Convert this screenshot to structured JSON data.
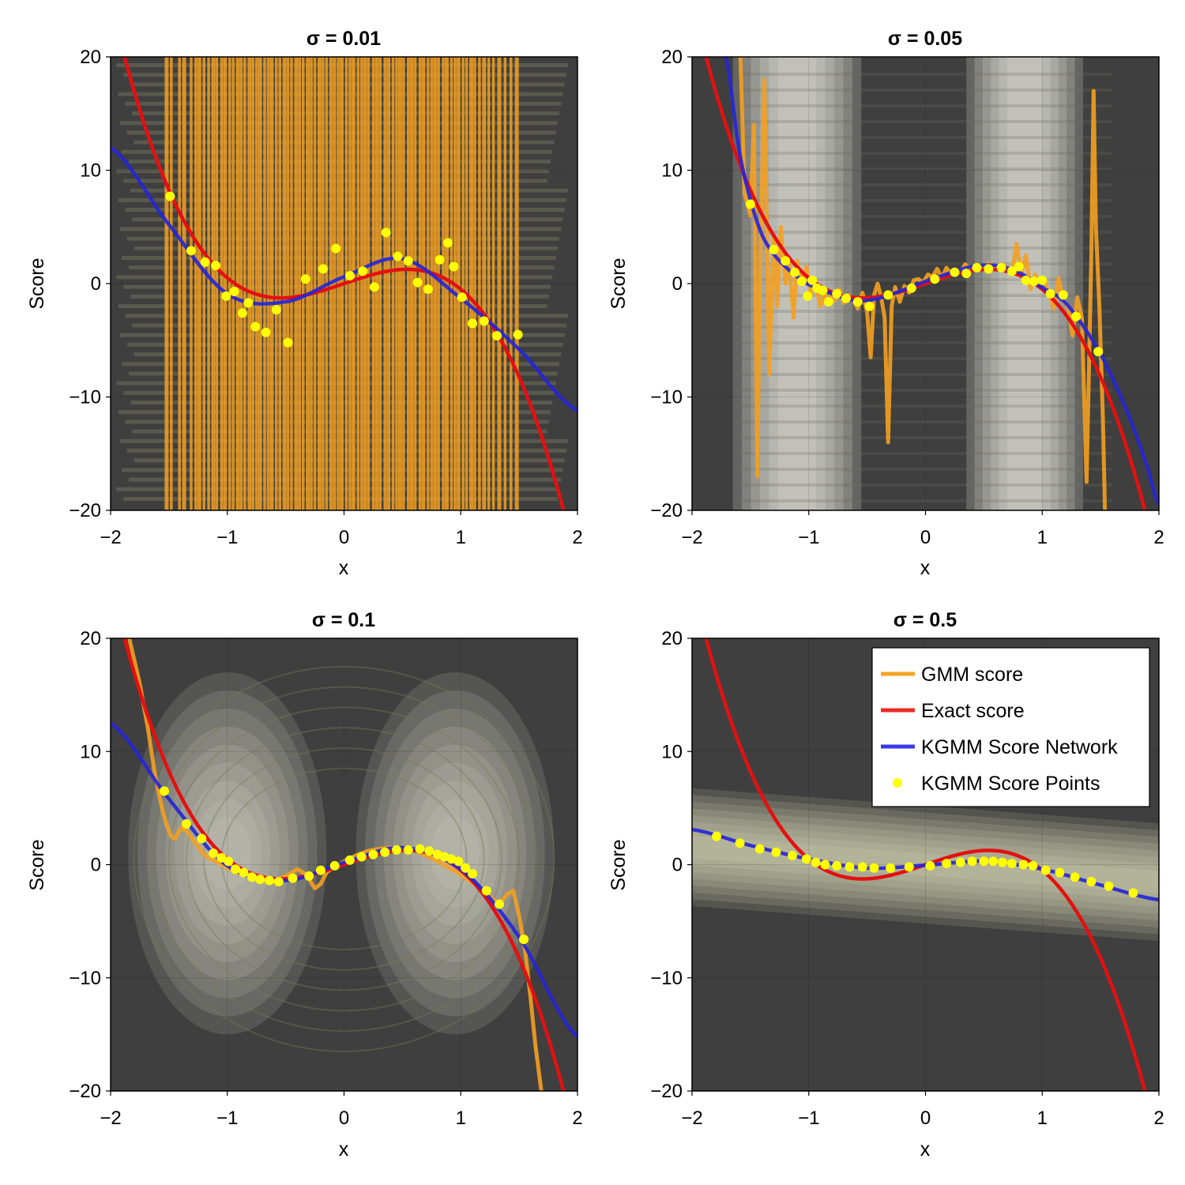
{
  "chart_data": [
    {
      "type": "line",
      "title": "σ = 0.01",
      "sigma": 0.01,
      "xlabel": "x",
      "ylabel": "Score",
      "xlim": [
        -2,
        2
      ],
      "ylim": [
        -20,
        20
      ],
      "xticks": [
        -2,
        -1,
        0,
        1,
        2
      ],
      "yticks": [
        -20,
        -10,
        0,
        10,
        20
      ],
      "xtick_labels": [
        "−2",
        "−1",
        "0",
        "1",
        "2"
      ],
      "ytick_labels": [
        "−20",
        "−10",
        "0",
        "10",
        "20"
      ],
      "grid": true,
      "series": [
        {
          "name": "GMM score",
          "style": "vertical-lines",
          "x": [
            -1.52,
            -1.48,
            -1.41,
            -1.37,
            -1.31,
            -1.27,
            -1.24,
            -1.2,
            -1.16,
            -1.12,
            -1.09,
            -1.05,
            -1.02,
            -0.98,
            -0.95,
            -0.91,
            -0.88,
            -0.85,
            -0.81,
            -0.78,
            -0.75,
            -0.72,
            -0.68,
            -0.65,
            -0.62,
            -0.58,
            -0.55,
            -0.51,
            -0.48,
            -0.45,
            -0.41,
            -0.38,
            -0.35,
            -0.31,
            -0.28,
            -0.25,
            -0.21,
            -0.18,
            -0.15,
            -0.11,
            -0.08,
            -0.05,
            -0.02,
            0.02,
            0.05,
            0.08,
            0.12,
            0.15,
            0.18,
            0.21,
            0.25,
            0.28,
            0.31,
            0.35,
            0.38,
            0.42,
            0.45,
            0.48,
            0.51,
            0.55,
            0.58,
            0.61,
            0.65,
            0.68,
            0.72,
            0.75,
            0.78,
            0.81,
            0.85,
            0.88,
            0.92,
            0.95,
            0.98,
            1.02,
            1.05,
            1.09,
            1.12,
            1.16,
            1.2,
            1.24,
            1.28,
            1.33,
            1.38,
            1.43,
            1.48
          ]
        },
        {
          "name": "Exact score",
          "fn": "exact"
        },
        {
          "name": "KGMM Score Network",
          "fn": "network",
          "x": [
            -2,
            -1.5,
            -1.0,
            -0.5,
            0,
            0.5,
            1.0,
            1.5,
            2.0
          ],
          "y": [
            12,
            5.2,
            -0.9,
            -1.6,
            0.6,
            2.2,
            -1.3,
            -5.8,
            -11.2
          ]
        },
        {
          "name": "KGMM Score Points",
          "fn": "points",
          "x": [
            -1.49,
            -1.31,
            -1.19,
            -1.1,
            -1.01,
            -0.94,
            -0.87,
            -0.82,
            -0.76,
            -0.67,
            -0.58,
            -0.48,
            -0.33,
            -0.18,
            -0.07,
            0.05,
            0.16,
            0.26,
            0.36,
            0.46,
            0.55,
            0.63,
            0.72,
            0.82,
            0.89,
            0.94,
            1.01,
            1.1,
            1.2,
            1.31,
            1.49
          ],
          "y": [
            7.7,
            2.9,
            1.9,
            1.6,
            -1.1,
            -0.7,
            -2.6,
            -1.7,
            -3.8,
            -4.3,
            -2.3,
            -5.2,
            0.4,
            1.3,
            3.1,
            0.7,
            1.1,
            -0.3,
            4.5,
            2.4,
            2.0,
            0.1,
            -0.5,
            2.1,
            3.6,
            1.5,
            -1.2,
            -3.5,
            -3.3,
            -4.6,
            -4.5
          ]
        }
      ],
      "legend": null
    },
    {
      "type": "line",
      "title": "σ = 0.05",
      "sigma": 0.05,
      "xlabel": "x",
      "ylabel": "Score",
      "xlim": [
        -2,
        2
      ],
      "ylim": [
        -20,
        20
      ],
      "xticks": [
        -2,
        -1,
        0,
        1,
        2
      ],
      "yticks": [
        -20,
        -10,
        0,
        10,
        20
      ],
      "xtick_labels": [
        "−2",
        "−1",
        "0",
        "1",
        "2"
      ],
      "ytick_labels": [
        "−20",
        "−10",
        "0",
        "10",
        "20"
      ],
      "grid": true,
      "series": [
        {
          "name": "GMM score",
          "fn": "gmm",
          "x": [
            -1.6,
            -1.55,
            -1.5,
            -1.47,
            -1.44,
            -1.42,
            -1.38,
            -1.34,
            -1.3,
            -1.27,
            -1.24,
            -1.2,
            -1.17,
            -1.13,
            -1.1,
            -1.06,
            -1.02,
            -0.98,
            -0.94,
            -0.9,
            -0.86,
            -0.82,
            -0.78,
            -0.74,
            -0.7,
            -0.66,
            -0.62,
            -0.58,
            -0.54,
            -0.5,
            -0.47,
            -0.44,
            -0.41,
            -0.38,
            -0.35,
            -0.32,
            -0.29,
            -0.26,
            -0.22,
            -0.18,
            -0.14,
            -0.1,
            -0.06,
            -0.02,
            0.02,
            0.06,
            0.1,
            0.14,
            0.18,
            0.22,
            0.26,
            0.3,
            0.34,
            0.38,
            0.42,
            0.46,
            0.5,
            0.54,
            0.58,
            0.62,
            0.66,
            0.7,
            0.74,
            0.78,
            0.82,
            0.86,
            0.9,
            0.94,
            0.98,
            1.02,
            1.06,
            1.1,
            1.14,
            1.18,
            1.22,
            1.26,
            1.3,
            1.34,
            1.38,
            1.42,
            1.44,
            1.46,
            1.49,
            1.52,
            1.54
          ],
          "y": [
            25,
            8,
            6,
            14,
            -17,
            0,
            18,
            -8,
            4,
            -2,
            5,
            0,
            2,
            -3,
            2,
            0,
            1.5,
            -1,
            0,
            -2,
            -0.8,
            -1.2,
            -1.5,
            -0.5,
            -1.7,
            -1,
            -1.4,
            -2.2,
            -0.8,
            -2.5,
            -6.5,
            -1,
            0,
            -1.2,
            -3,
            -14,
            -2,
            -0.3,
            -1.6,
            -0.2,
            -0.8,
            0.3,
            0.4,
            0.1,
            0.8,
            0.6,
            1.3,
            0.5,
            1.4,
            0.8,
            1.2,
            1.0,
            1.7,
            1.3,
            1.4,
            1.5,
            1.4,
            1.8,
            1.6,
            1.3,
            1.7,
            1.4,
            0.8,
            3.5,
            0.8,
            2.5,
            -0.5,
            0.8,
            -0.2,
            0.2,
            -1,
            -2.2,
            0.5,
            -1.5,
            -2,
            -4.6,
            -1.2,
            -3,
            -17.5,
            2,
            17,
            5,
            -2,
            -12,
            -21
          ]
        },
        {
          "name": "Exact score",
          "fn": "exact"
        },
        {
          "name": "KGMM Score Network",
          "fn": "network",
          "x": [
            -1.71,
            -1.6,
            -1.5,
            -1.4,
            -1.3,
            -1.2,
            -1.1,
            -1.0,
            -0.8,
            -0.6,
            -0.4,
            -0.2,
            0,
            0.2,
            0.4,
            0.6,
            0.8,
            1.0,
            1.1,
            1.2,
            1.3,
            1.4,
            1.5,
            1.6,
            1.7,
            1.8,
            1.9,
            2.0
          ],
          "y": [
            20,
            12,
            7.4,
            4.3,
            2.6,
            1.5,
            0.6,
            -0.1,
            -0.9,
            -1.5,
            -1.3,
            -0.6,
            0.2,
            0.9,
            1.5,
            1.6,
            1.0,
            -0.3,
            -0.9,
            -1.7,
            -3.0,
            -4.5,
            -6.2,
            -8.3,
            -10.6,
            -13.2,
            -16.2,
            -19.5
          ]
        },
        {
          "name": "KGMM Score Points",
          "fn": "points",
          "x": [
            -1.5,
            -1.3,
            -1.2,
            -1.12,
            -1.06,
            -1.01,
            -0.97,
            -0.93,
            -0.88,
            -0.83,
            -0.76,
            -0.68,
            -0.58,
            -0.48,
            -0.32,
            -0.12,
            0.08,
            0.25,
            0.35,
            0.44,
            0.54,
            0.65,
            0.74,
            0.8,
            0.86,
            0.93,
            1.0,
            1.07,
            1.18,
            1.29,
            1.48
          ],
          "y": [
            7,
            3,
            2,
            1,
            0.2,
            -1.1,
            0.3,
            -0.4,
            -0.6,
            -1.6,
            -0.9,
            -1.3,
            -1.6,
            -2.0,
            -1.0,
            -0.4,
            0.4,
            1.0,
            0.9,
            1.4,
            1.3,
            1.4,
            1.1,
            1.5,
            0.3,
            0.2,
            0.3,
            -0.9,
            -1.0,
            -2.9,
            -6.0
          ]
        }
      ],
      "legend": null
    },
    {
      "type": "line",
      "title": "σ = 0.1",
      "sigma": 0.1,
      "xlabel": "x",
      "ylabel": "Score",
      "xlim": [
        -2,
        2
      ],
      "ylim": [
        -20,
        20
      ],
      "xticks": [
        -2,
        -1,
        0,
        1,
        2
      ],
      "yticks": [
        -20,
        -10,
        0,
        10,
        20
      ],
      "xtick_labels": [
        "−2",
        "−1",
        "0",
        "1",
        "2"
      ],
      "ytick_labels": [
        "−20",
        "−10",
        "0",
        "10",
        "20"
      ],
      "grid": true,
      "series": [
        {
          "name": "GMM score",
          "fn": "gmm",
          "x": [
            -1.84,
            -1.75,
            -1.68,
            -1.62,
            -1.56,
            -1.52,
            -1.48,
            -1.45,
            -1.4,
            -1.35,
            -1.3,
            -1.25,
            -1.2,
            -1.15,
            -1.1,
            -1.0,
            -0.9,
            -0.8,
            -0.7,
            -0.6,
            -0.5,
            -0.45,
            -0.4,
            -0.35,
            -0.3,
            -0.25,
            -0.2,
            -0.15,
            -0.1,
            0,
            0.1,
            0.2,
            0.3,
            0.4,
            0.5,
            0.6,
            0.7,
            0.8,
            0.9,
            1.0,
            1.1,
            1.2,
            1.3,
            1.35,
            1.4,
            1.45,
            1.5,
            1.55,
            1.6,
            1.64,
            1.69
          ],
          "y": [
            20,
            16,
            12,
            8,
            5,
            3.5,
            2.5,
            2.3,
            3.2,
            3.0,
            2.3,
            1.6,
            0.9,
            0.5,
            0.3,
            -0.3,
            -0.8,
            -1.1,
            -1.4,
            -1.5,
            -1.0,
            -0.7,
            -0.4,
            -0.7,
            -1.3,
            -2.1,
            -1.7,
            -0.7,
            -0.3,
            0.3,
            0.8,
            1.2,
            1.4,
            1.5,
            1.5,
            1.3,
            0.8,
            0.3,
            -0.3,
            -0.9,
            -1.6,
            -2.3,
            -3.3,
            -3.2,
            -2.6,
            -2.3,
            -4.5,
            -7.5,
            -12,
            -16,
            -20
          ]
        },
        {
          "name": "Exact score",
          "fn": "exact"
        },
        {
          "name": "KGMM Score Network",
          "fn": "network",
          "x": [
            -2,
            -1.5,
            -1.0,
            -0.5,
            0,
            0.5,
            1.0,
            1.5,
            2.0
          ],
          "y": [
            12.5,
            5.8,
            -0.1,
            -1.4,
            0.2,
            1.5,
            -0.4,
            -6.4,
            -15.2
          ]
        },
        {
          "name": "KGMM Score Points",
          "fn": "points",
          "x": [
            -1.54,
            -1.35,
            -1.22,
            -1.12,
            -1.05,
            -0.99,
            -0.93,
            -0.86,
            -0.79,
            -0.72,
            -0.64,
            -0.56,
            -0.44,
            -0.3,
            -0.2,
            -0.08,
            0.05,
            0.15,
            0.25,
            0.35,
            0.45,
            0.55,
            0.65,
            0.73,
            0.8,
            0.86,
            0.92,
            0.98,
            1.04,
            1.1,
            1.22,
            1.33,
            1.54
          ],
          "y": [
            6.5,
            3.6,
            2.3,
            1.0,
            0.6,
            0.3,
            -0.4,
            -0.7,
            -1.1,
            -1.3,
            -1.4,
            -1.5,
            -1.2,
            -1.0,
            -0.5,
            -0.1,
            0.4,
            0.7,
            0.9,
            1.1,
            1.3,
            1.3,
            1.4,
            1.2,
            0.9,
            0.7,
            0.5,
            0.3,
            -0.3,
            -0.8,
            -2.3,
            -3.5,
            -6.6
          ]
        }
      ],
      "legend": null
    },
    {
      "type": "line",
      "title": "σ = 0.5",
      "sigma": 0.5,
      "xlabel": "x",
      "ylabel": "Score",
      "xlim": [
        -2,
        2
      ],
      "ylim": [
        -20,
        20
      ],
      "xticks": [
        -2,
        -1,
        0,
        1,
        2
      ],
      "yticks": [
        -20,
        -10,
        0,
        10,
        20
      ],
      "xtick_labels": [
        "−2",
        "−1",
        "0",
        "1",
        "2"
      ],
      "ytick_labels": [
        "−20",
        "−10",
        "0",
        "10",
        "20"
      ],
      "grid": true,
      "series": [
        {
          "name": "GMM score",
          "fn": "gmm",
          "x": [],
          "y": []
        },
        {
          "name": "Exact score",
          "fn": "exact"
        },
        {
          "name": "KGMM Score Network",
          "fn": "network",
          "x": [
            -2,
            -1.5,
            -1.0,
            -0.5,
            0,
            0.5,
            1.0,
            1.5,
            2.0
          ],
          "y": [
            3.1,
            1.7,
            0.5,
            -0.3,
            -0.05,
            0.3,
            -0.4,
            -1.8,
            -3.1
          ]
        },
        {
          "name": "KGMM Score Points",
          "fn": "points",
          "x": [
            -1.79,
            -1.59,
            -1.42,
            -1.28,
            -1.14,
            -1.02,
            -0.94,
            -0.86,
            -0.76,
            -0.65,
            -0.54,
            -0.44,
            -0.3,
            -0.14,
            0.04,
            0.18,
            0.3,
            0.4,
            0.5,
            0.58,
            0.66,
            0.74,
            0.84,
            0.92,
            1.03,
            1.15,
            1.28,
            1.42,
            1.57,
            1.78
          ],
          "y": [
            2.5,
            1.9,
            1.4,
            1.1,
            0.8,
            0.5,
            0.2,
            0.0,
            -0.1,
            -0.2,
            -0.2,
            -0.3,
            -0.3,
            -0.2,
            -0.1,
            0.1,
            0.2,
            0.3,
            0.3,
            0.3,
            0.2,
            0.1,
            0.0,
            -0.1,
            -0.5,
            -0.7,
            -1.1,
            -1.5,
            -1.9,
            -2.5
          ]
        }
      ],
      "legend": {
        "position": "top-right",
        "entries": [
          {
            "label": "GMM score",
            "color": "#f5a623",
            "marker": "line"
          },
          {
            "label": "Exact score",
            "color": "#ee2a24",
            "marker": "line"
          },
          {
            "label": "KGMM Score Network",
            "color": "#3a3ae8",
            "marker": "line"
          },
          {
            "label": "KGMM Score Points",
            "color": "#ffff00",
            "marker": "dot"
          }
        ]
      }
    }
  ],
  "colors": {
    "gmm": "#f4a020",
    "exact": "#e41010",
    "network": "#2525d8",
    "points": "#ffff00",
    "background": "#3f3f3f",
    "density": "#f2f2ea"
  }
}
